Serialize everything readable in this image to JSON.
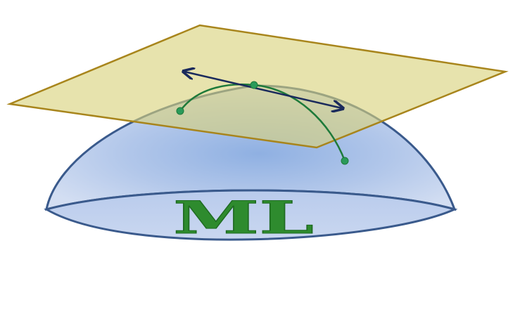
{
  "logo": {
    "text": "ML",
    "text_color": "#2e8b2e",
    "text_stroke": "#1f6b22"
  },
  "colors": {
    "dome_fill_edge": "#c7d6ee",
    "dome_fill_center": "#8fb0e2",
    "dome_stroke": "#3a5a8c",
    "plane_fill": "#d8d27a",
    "plane_stroke": "#a8851c",
    "curve_color": "#1e7a3a",
    "point_color": "#2a9a5a",
    "tangent_color": "#1a2a5c"
  },
  "icons": {
    "manifold": "dome-shape",
    "tangent_plane": "plane-shape",
    "geodesic": "curve-line",
    "tangent_vector": "double-arrow"
  }
}
